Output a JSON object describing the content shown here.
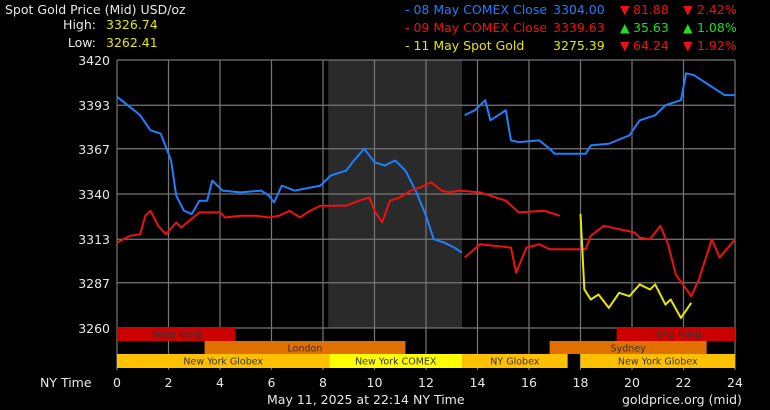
{
  "header": {
    "title": "Spot Gold Price (Mid) USD/oz",
    "high_label": "High:",
    "high_value": "3326.74",
    "low_label": "Low:",
    "low_value": "3262.41"
  },
  "legend": [
    {
      "label": "- 08 May COMEX Close",
      "value": "3304.00",
      "change_dir": "down",
      "change": "81.88",
      "pct": "2.42%",
      "color": "#1e7fff"
    },
    {
      "label": "- 09 May COMEX Close",
      "value": "3339.63",
      "change_dir": "up",
      "change": "35.63",
      "pct": "1.08%",
      "color": "#ee1111"
    },
    {
      "label": "- 11 May Spot Gold",
      "value": "3275.39",
      "change_dir": "down",
      "change": "64.24",
      "pct": "1.92%",
      "color": "#e6e600"
    }
  ],
  "footer": {
    "timestamp": "May 11, 2025 at 22:14 NY Time",
    "source": "goldprice.org (mid)",
    "x_axis_label": "NY Time"
  },
  "chart_data": {
    "type": "line",
    "xlim": [
      0,
      24
    ],
    "ylim": [
      3260,
      3420
    ],
    "x_ticks": [
      "0",
      "2",
      "4",
      "6",
      "8",
      "10",
      "12",
      "14",
      "16",
      "18",
      "20",
      "22",
      "24"
    ],
    "y_ticks": [
      "3420",
      "3393",
      "3367",
      "3340",
      "3313",
      "3287",
      "3260"
    ],
    "grid": true,
    "shaded_hours": [
      8.2,
      13.4
    ],
    "shade_color": "#2a2a2a",
    "sessions": [
      {
        "name": "Hong Kong",
        "start": 0,
        "end": 4.6,
        "row": 0,
        "color": "#cc0000"
      },
      {
        "name": "Hong Kong",
        "start": 19.4,
        "end": 24,
        "row": 0,
        "color": "#cc0000"
      },
      {
        "name": "London",
        "start": 3.4,
        "end": 11.2,
        "row": 1,
        "color": "#e07000"
      },
      {
        "name": "Sydney",
        "start": 16.8,
        "end": 22.9,
        "row": 1,
        "color": "#e07000"
      },
      {
        "name": "New York Globex",
        "start": 0,
        "end": 8.25,
        "row": 2,
        "color": "#ffc000"
      },
      {
        "name": "New York COMEX",
        "start": 8.25,
        "end": 13.4,
        "row": 2,
        "color": "#ffff00"
      },
      {
        "name": "NY Globex",
        "start": 13.4,
        "end": 17.5,
        "row": 2,
        "color": "#ffc000"
      },
      {
        "name": "New York Globex",
        "start": 18,
        "end": 24,
        "row": 2,
        "color": "#ffc000"
      }
    ],
    "series": [
      {
        "name": "08 May COMEX Close",
        "color": "#1e7fff",
        "segments": [
          [
            [
              0,
              3398
            ],
            [
              0.5,
              3392
            ],
            [
              0.9,
              3387
            ],
            [
              1.3,
              3378
            ],
            [
              1.7,
              3376
            ],
            [
              2.1,
              3360
            ],
            [
              2.3,
              3339
            ],
            [
              2.6,
              3330
            ],
            [
              2.9,
              3328
            ],
            [
              3.2,
              3336
            ],
            [
              3.5,
              3336
            ],
            [
              3.7,
              3348
            ],
            [
              4.1,
              3342
            ],
            [
              4.8,
              3341
            ],
            [
              5.6,
              3342
            ],
            [
              5.9,
              3339
            ],
            [
              6.1,
              3335
            ],
            [
              6.4,
              3345
            ],
            [
              6.9,
              3342
            ],
            [
              7.9,
              3345
            ],
            [
              8.3,
              3351
            ],
            [
              8.9,
              3354
            ],
            [
              9.2,
              3360
            ],
            [
              9.6,
              3367
            ],
            [
              10.0,
              3359
            ],
            [
              10.4,
              3357
            ],
            [
              10.8,
              3360
            ],
            [
              11.2,
              3354
            ],
            [
              11.6,
              3342
            ],
            [
              12.0,
              3327
            ],
            [
              12.3,
              3313
            ],
            [
              12.7,
              3311
            ],
            [
              13.1,
              3308
            ],
            [
              13.4,
              3305
            ]
          ],
          [
            [
              13.5,
              3387
            ],
            [
              13.9,
              3390
            ],
            [
              14.3,
              3396
            ],
            [
              14.5,
              3384
            ],
            [
              15.1,
              3390
            ],
            [
              15.3,
              3372
            ],
            [
              15.6,
              3371
            ],
            [
              16.4,
              3372
            ],
            [
              16.8,
              3367
            ],
            [
              17.0,
              3364
            ],
            [
              18.2,
              3364
            ],
            [
              18.4,
              3369
            ],
            [
              19.1,
              3370
            ],
            [
              19.9,
              3375
            ],
            [
              20.3,
              3384
            ],
            [
              20.9,
              3387
            ],
            [
              21.3,
              3393
            ],
            [
              21.9,
              3396
            ],
            [
              22.1,
              3412
            ],
            [
              22.4,
              3411
            ],
            [
              23.0,
              3405
            ],
            [
              23.6,
              3399
            ],
            [
              24,
              3399
            ]
          ]
        ]
      },
      {
        "name": "09 May COMEX Close",
        "color": "#ee1111",
        "segments": [
          [
            [
              0,
              3311
            ],
            [
              0.5,
              3315
            ],
            [
              0.9,
              3316
            ],
            [
              1.1,
              3327
            ],
            [
              1.3,
              3330
            ],
            [
              1.6,
              3321
            ],
            [
              1.9,
              3316
            ],
            [
              2.3,
              3323
            ],
            [
              2.5,
              3320
            ],
            [
              2.8,
              3324
            ],
            [
              3.2,
              3329
            ],
            [
              3.6,
              3329
            ],
            [
              4.0,
              3329
            ],
            [
              4.2,
              3326
            ],
            [
              4.8,
              3327
            ],
            [
              5.4,
              3327
            ],
            [
              5.9,
              3326
            ],
            [
              6.3,
              3327
            ],
            [
              6.7,
              3330
            ],
            [
              7.1,
              3326
            ],
            [
              7.5,
              3330
            ],
            [
              7.9,
              3333
            ],
            [
              8.3,
              3333
            ],
            [
              8.9,
              3333
            ],
            [
              9.4,
              3336
            ],
            [
              9.8,
              3338
            ],
            [
              10.0,
              3330
            ],
            [
              10.3,
              3323
            ],
            [
              10.6,
              3336
            ],
            [
              11.0,
              3338
            ],
            [
              11.4,
              3342
            ],
            [
              11.8,
              3344
            ],
            [
              12.2,
              3347
            ],
            [
              12.6,
              3342
            ],
            [
              12.9,
              3341
            ],
            [
              13.3,
              3342
            ],
            [
              14.1,
              3341
            ],
            [
              15.1,
              3336
            ],
            [
              15.6,
              3329
            ],
            [
              16.6,
              3330
            ],
            [
              17.2,
              3327
            ]
          ],
          [
            [
              13.5,
              3302
            ],
            [
              14.1,
              3310
            ],
            [
              15.3,
              3308
            ],
            [
              15.5,
              3293
            ],
            [
              15.9,
              3308
            ],
            [
              16.4,
              3310
            ],
            [
              16.8,
              3307
            ],
            [
              18.2,
              3307
            ],
            [
              18.4,
              3315
            ],
            [
              18.9,
              3321
            ],
            [
              19.5,
              3319
            ],
            [
              20.1,
              3317
            ],
            [
              20.3,
              3314
            ],
            [
              20.7,
              3313
            ],
            [
              21.1,
              3321
            ],
            [
              21.4,
              3310
            ],
            [
              21.7,
              3292
            ],
            [
              22.3,
              3279
            ],
            [
              22.6,
              3289
            ],
            [
              23.1,
              3313
            ],
            [
              23.4,
              3302
            ],
            [
              24,
              3313
            ]
          ]
        ]
      },
      {
        "name": "11 May Spot Gold",
        "color": "#e6e600",
        "segments": [
          [
            [
              18.0,
              3328
            ],
            [
              18.15,
              3283
            ],
            [
              18.4,
              3277
            ],
            [
              18.7,
              3280
            ],
            [
              19.1,
              3272
            ],
            [
              19.5,
              3281
            ],
            [
              19.9,
              3279
            ],
            [
              20.3,
              3286
            ],
            [
              20.7,
              3283
            ],
            [
              20.9,
              3286
            ],
            [
              21.3,
              3274
            ],
            [
              21.5,
              3277
            ],
            [
              21.9,
              3266
            ],
            [
              22.3,
              3275
            ]
          ]
        ]
      }
    ]
  }
}
